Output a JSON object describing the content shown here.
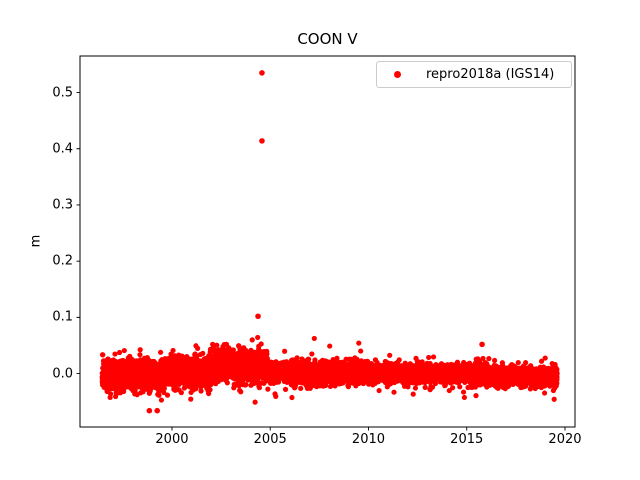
{
  "chart_data": {
    "type": "scatter",
    "title": "COON V",
    "xlabel": "",
    "ylabel": "m",
    "xlim": [
      1995.32,
      2020.51
    ],
    "ylim": [
      -0.095,
      0.565
    ],
    "xticks": [
      2000,
      2005,
      2010,
      2015,
      2020
    ],
    "xtick_labels": [
      "2000",
      "2005",
      "2010",
      "2015",
      "2020"
    ],
    "yticks": [
      0.0,
      0.1,
      0.2,
      0.3,
      0.4,
      0.5
    ],
    "ytick_labels": [
      "0.0",
      "0.1",
      "0.2",
      "0.3",
      "0.4",
      "0.5"
    ],
    "grid": false,
    "background_color": "#ffffff",
    "axis_color": "#000000",
    "text_color": "#000000",
    "legend": {
      "position": "upper right",
      "entries": [
        {
          "label": "repro2018a (IGS14)",
          "color": "#ff0000",
          "marker": "dot"
        }
      ]
    },
    "series": [
      {
        "name": "repro2018a (IGS14)",
        "color": "#ff0000",
        "marker": "dot",
        "marker_diameter_px": 6,
        "sampling": "daily",
        "x_start": 1996.45,
        "x_end": 2019.6,
        "band_segments": [
          {
            "x_start": 1996.45,
            "x_end": 1999.5,
            "center": -0.004,
            "sigma": 0.013
          },
          {
            "x_start": 1999.5,
            "x_end": 2002.0,
            "center": 0.002,
            "sigma": 0.013
          },
          {
            "x_start": 2002.0,
            "x_end": 2004.9,
            "center": 0.014,
            "sigma": 0.014
          },
          {
            "x_start": 2004.9,
            "x_end": 2010.0,
            "center": 0.002,
            "sigma": 0.009
          },
          {
            "x_start": 2010.0,
            "x_end": 2016.0,
            "center": 0.0,
            "sigma": 0.008
          },
          {
            "x_start": 2016.0,
            "x_end": 2019.6,
            "center": -0.005,
            "sigma": 0.008
          }
        ],
        "outliers": [
          {
            "x": 2004.58,
            "y": 0.535
          },
          {
            "x": 2004.58,
            "y": 0.414
          },
          {
            "x": 2004.38,
            "y": 0.102
          },
          {
            "x": 2015.78,
            "y": 0.052
          },
          {
            "x": 1998.85,
            "y": -0.066
          },
          {
            "x": 1999.25,
            "y": -0.066
          }
        ]
      }
    ]
  }
}
